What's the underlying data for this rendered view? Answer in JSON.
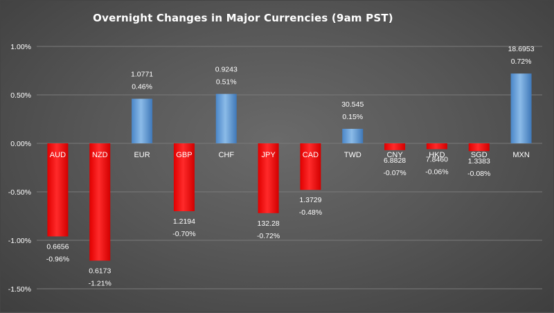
{
  "chart_data": {
    "type": "bar",
    "title": "Overnight Changes in Major Currencies (9am PST)",
    "xlabel": "",
    "ylabel": "",
    "ylim": [
      -0.015,
      0.01
    ],
    "yticks": [
      "1.00%",
      "0.50%",
      "0.00%",
      "-0.50%",
      "-1.00%",
      "-1.50%"
    ],
    "ytick_values": [
      0.01,
      0.005,
      0,
      -0.005,
      -0.01,
      -0.015
    ],
    "grid": true,
    "legend": "none",
    "categories": [
      "AUD",
      "NZD",
      "EUR",
      "GBP",
      "CHF",
      "JPY",
      "CAD",
      "TWD",
      "CNY",
      "HKD",
      "SGD",
      "MXN"
    ],
    "values": [
      -0.0096,
      -0.0121,
      0.0046,
      -0.007,
      0.0051,
      -0.0072,
      -0.0048,
      0.0015,
      -0.0007,
      -0.0006,
      -0.0008,
      0.0072
    ],
    "rates": [
      "0.6656",
      "0.6173",
      "1.0771",
      "1.2194",
      "0.9243",
      "132.28",
      "1.3729",
      "30.545",
      "6.8828",
      "7.8460",
      "1.3383",
      "18.6953"
    ],
    "pct_labels": [
      "-0.96%",
      "-1.21%",
      "0.46%",
      "-0.70%",
      "0.51%",
      "-0.72%",
      "-0.48%",
      "0.15%",
      "-0.07%",
      "-0.06%",
      "-0.08%",
      "0.72%"
    ],
    "colors": {
      "positive": "#5b9bd5",
      "negative": "#ff0000",
      "grid": "#7a7a7a",
      "text": "#ffffff"
    }
  }
}
